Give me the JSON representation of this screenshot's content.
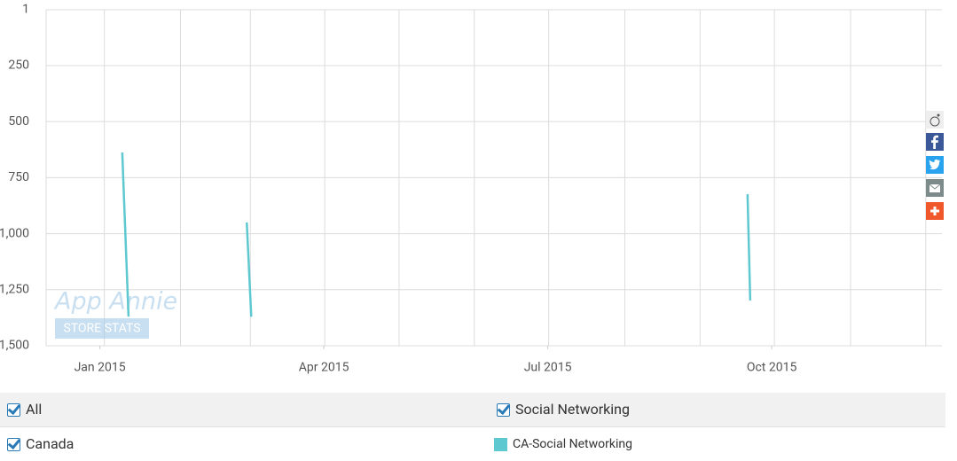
{
  "chart_data": {
    "type": "line",
    "x": [
      2015.025,
      2015.032,
      2015.1,
      2015.164,
      2015.169,
      2015.45,
      2015.723,
      2015.726
    ],
    "series": [
      {
        "name": "CA-Social Networking",
        "color": "#5ec8d0",
        "values": [
          638,
          1370,
          null,
          950,
          1370,
          null,
          824,
          1298
        ]
      }
    ],
    "xlim": [
      2014.94,
      2015.94
    ],
    "xticks": [
      {
        "value": 2015.0,
        "label": "Jan 2015"
      },
      {
        "value": 2015.25,
        "label": "Apr 2015"
      },
      {
        "value": 2015.5,
        "label": "Jul 2015"
      },
      {
        "value": 2015.75,
        "label": "Oct 2015"
      }
    ],
    "xgrid": [
      2015.005,
      2015.09,
      2015.168,
      2015.251,
      2015.334,
      2015.418,
      2015.501,
      2015.586,
      2015.67,
      2015.753,
      2015.838,
      2015.922
    ],
    "ylim": [
      1,
      1500
    ],
    "y_reversed": true,
    "yticks": [
      1,
      250,
      500,
      750,
      {
        "value": 1000,
        "label": "1,000"
      },
      {
        "value": 1250,
        "label": "1,250"
      },
      {
        "value": 1500,
        "label": "1,500"
      }
    ],
    "grid": true,
    "watermark": {
      "title": "App Annie",
      "subtitle": "STORE STATS"
    }
  },
  "filters": {
    "row1": [
      "All",
      "Social Networking"
    ],
    "row2": [
      "Canada"
    ]
  }
}
